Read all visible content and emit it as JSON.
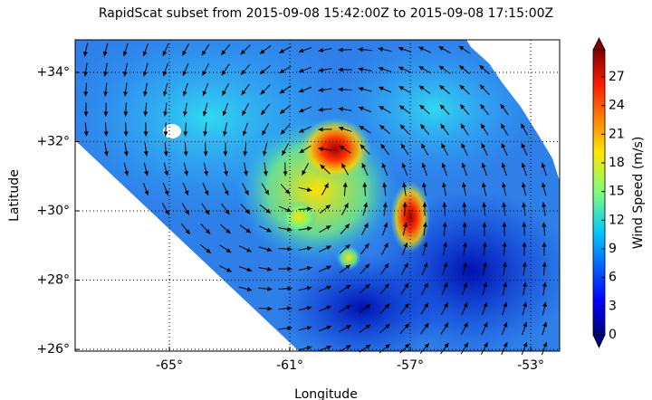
{
  "map": {
    "title": "RapidScat subset from 2015-09-08 15:42:00Z to 2015-09-08 17:15:00Z",
    "xlabel": "Longitude",
    "ylabel": "Latitude",
    "xlim": [
      -68.13,
      -52.04
    ],
    "ylim": [
      25.95,
      34.94
    ],
    "xticks": [
      {
        "value": -65,
        "label": "-65°"
      },
      {
        "value": -61,
        "label": "-61°"
      },
      {
        "value": -57,
        "label": "-57°"
      },
      {
        "value": -53,
        "label": "-53°"
      }
    ],
    "yticks": [
      {
        "value": 26,
        "label": "+26°"
      },
      {
        "value": 28,
        "label": "+28°"
      },
      {
        "value": 30,
        "label": "+30°"
      },
      {
        "value": 32,
        "label": "+32°"
      },
      {
        "value": 34,
        "label": "+34°"
      }
    ],
    "grid": true,
    "colorbar": {
      "label": "Wind Speed (m/s)",
      "lim": [
        0,
        29.84
      ],
      "ticks": [
        0,
        3,
        6,
        9,
        12,
        15,
        18,
        21,
        24,
        27
      ]
    }
  }
}
